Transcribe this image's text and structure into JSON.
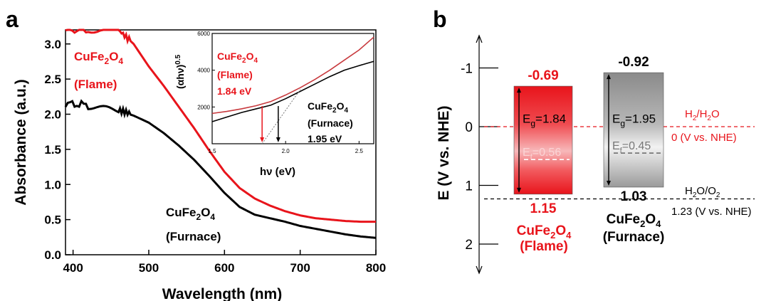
{
  "panel_a": {
    "letter": "a",
    "colors": {
      "flame": "#e8141b",
      "furnace": "#000000",
      "inset_fit": "#777777"
    },
    "main_label_flame": {
      "l1": "CuFe",
      "s1": "2",
      "l2": "O",
      "s2": "4",
      "line2": "(Flame)"
    },
    "main_label_furnace": {
      "l1": "CuFe",
      "s1": "2",
      "l2": "O",
      "s2": "4",
      "line2": "(Furnace)"
    },
    "inset_label_flame": {
      "l1": "CuFe",
      "s1": "2",
      "l2": "O",
      "s2": "4",
      "line2": "(Flame)",
      "line3": "1.84 eV"
    },
    "inset_label_furnace": {
      "l1": "CuFe",
      "s1": "2",
      "l2": "O",
      "s2": "4",
      "line2": "(Furnace)",
      "line3": "1.95 eV"
    }
  },
  "chart_data": [
    {
      "type": "line",
      "xlabel": "Wavelength (nm)",
      "ylabel": "Absorbance (a.u.)",
      "xlim": [
        390,
        800
      ],
      "ylim": [
        0,
        3.2
      ],
      "xticks": [
        "400",
        "500",
        "600",
        "700",
        "800"
      ],
      "yticks": [
        "0.0",
        "0.5",
        "1.0",
        "1.5",
        "2.0",
        "2.5",
        "3.0"
      ],
      "series": [
        {
          "name": "CuFe2O4 (Flame)",
          "x": [
            390,
            420,
            460,
            480,
            500,
            520,
            540,
            560,
            580,
            600,
            620,
            640,
            660,
            680,
            700,
            720,
            740,
            760,
            780,
            800
          ],
          "y": [
            3.2,
            3.2,
            3.2,
            3.0,
            2.68,
            2.4,
            2.1,
            1.8,
            1.48,
            1.18,
            0.95,
            0.8,
            0.7,
            0.62,
            0.56,
            0.52,
            0.5,
            0.48,
            0.47,
            0.47
          ]
        },
        {
          "name": "CuFe2O4 (Furnace)",
          "x": [
            390,
            420,
            460,
            480,
            500,
            520,
            540,
            560,
            580,
            600,
            620,
            640,
            660,
            680,
            700,
            720,
            740,
            760,
            780,
            800
          ],
          "y": [
            2.15,
            2.13,
            2.05,
            1.98,
            1.88,
            1.73,
            1.55,
            1.35,
            1.12,
            0.88,
            0.68,
            0.57,
            0.52,
            0.47,
            0.41,
            0.37,
            0.33,
            0.29,
            0.26,
            0.24
          ]
        }
      ]
    },
    {
      "type": "line",
      "xlabel": "hν (eV)",
      "ylabel": "(αhν)0.5",
      "xlim": [
        1.5,
        2.6
      ],
      "ylim": [
        0,
        6000
      ],
      "xticks": [
        "1.5",
        "2.0",
        "2.5"
      ],
      "yticks": [
        "2000",
        "4000",
        "6000"
      ],
      "series": [
        {
          "name": "Flame",
          "x": [
            1.5,
            1.6,
            1.7,
            1.8,
            1.9,
            2.0,
            2.1,
            2.2,
            2.3,
            2.4,
            2.5,
            2.6
          ],
          "y": [
            1650,
            1760,
            1900,
            2070,
            2300,
            2650,
            3050,
            3500,
            4000,
            4550,
            5100,
            5800
          ]
        },
        {
          "name": "Furnace",
          "x": [
            1.5,
            1.6,
            1.7,
            1.8,
            1.9,
            2.0,
            2.1,
            2.2,
            2.3,
            2.4,
            2.5,
            2.6
          ],
          "y": [
            1200,
            1450,
            1700,
            1900,
            2100,
            2450,
            2850,
            3250,
            3650,
            4000,
            4250,
            4480
          ]
        }
      ],
      "markers": [
        {
          "x": 1.84,
          "color": "#e8141b"
        },
        {
          "x": 1.95,
          "color": "#000000"
        }
      ]
    },
    {
      "type": "bar",
      "ylabel": "E (V vs. NHE)",
      "ylim": [
        2.5,
        -1.5
      ],
      "yticks": [
        "-1",
        "0",
        "1",
        "2"
      ],
      "bars": [
        {
          "cb": -0.69,
          "vb": 1.15,
          "ef": 0.56,
          "eg": "1.84",
          "ef_label": "0.56",
          "cb_label": "-0.69",
          "vb_label": "1.15",
          "name": {
            "l1": "CuFe",
            "s1": "2",
            "l2": "O",
            "s2": "4",
            "line2": "(Flame)"
          },
          "color": "#e8141b"
        },
        {
          "cb": -0.92,
          "vb": 1.03,
          "ef": 0.45,
          "eg": "1.95",
          "ef_label": "0.45",
          "cb_label": "-0.92",
          "vb_label": "1.03",
          "name": {
            "l1": "CuFe",
            "s1": "2",
            "l2": "O",
            "s2": "4",
            "line2": "(Furnace)"
          },
          "color": "#888888"
        }
      ],
      "reference_lines": [
        {
          "y": 0,
          "color": "#e8141b",
          "label": {
            "a": "H",
            "as": "2",
            "b": "/H",
            "bs": "2",
            "c": "O"
          },
          "value_label": "0 (V vs. NHE)"
        },
        {
          "y": 1.23,
          "color": "#000000",
          "label": {
            "a": "H",
            "as": "2",
            "b": "O/O",
            "bs": "2",
            "c": ""
          },
          "value_label": "1.23 (V vs. NHE)"
        }
      ],
      "eg_prefix": "E",
      "eg_sub": "g",
      "ef_prefix": "E",
      "ef_sub": "f"
    }
  ],
  "panel_b": {
    "letter": "b"
  }
}
